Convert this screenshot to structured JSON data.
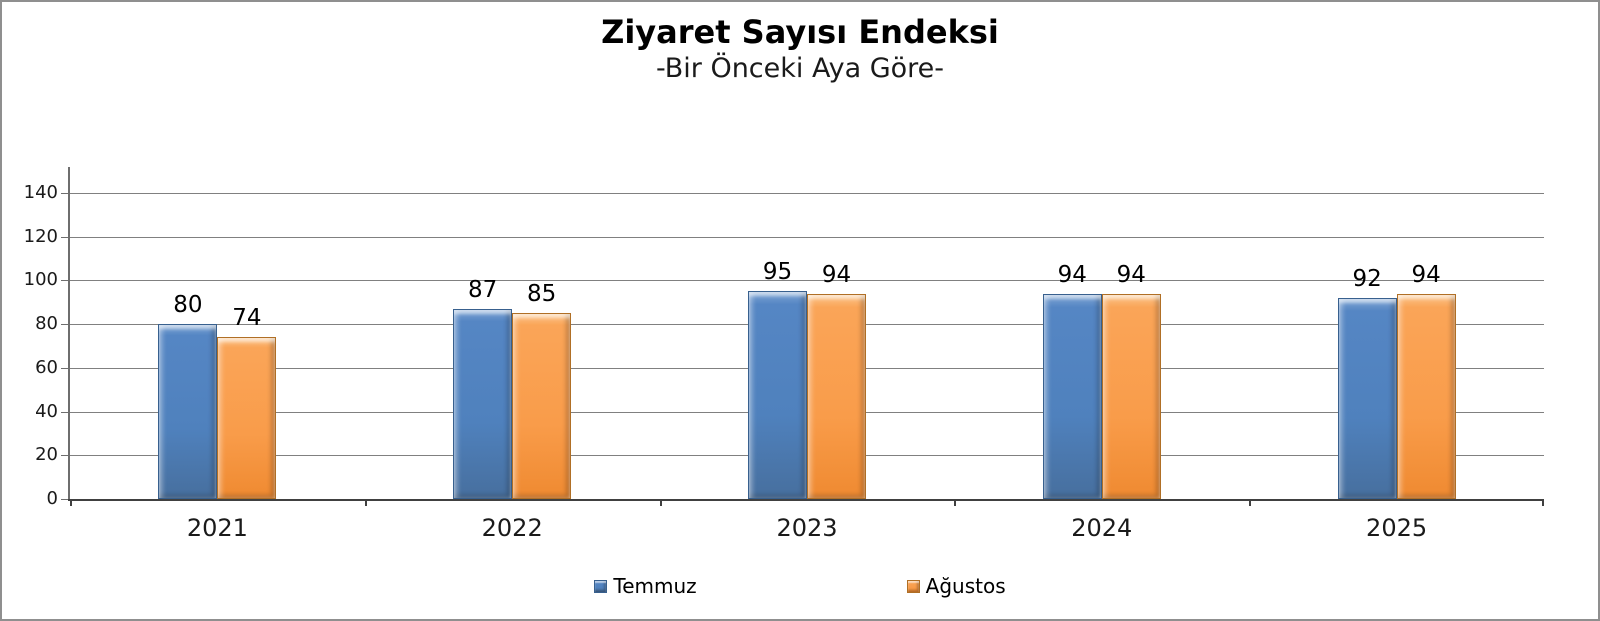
{
  "title": "Ziyaret Sayısı Endeksi",
  "subtitle": "-Bir Önceki Aya Göre-",
  "chart_data": {
    "type": "bar",
    "title": "Ziyaret Sayısı Endeksi",
    "subtitle": "-Bir Önceki Aya Göre-",
    "categories": [
      "2021",
      "2022",
      "2023",
      "2024",
      "2025"
    ],
    "series": [
      {
        "name": "Temmuz",
        "color": "#4F81BD",
        "values": [
          80,
          87,
          95,
          94,
          92
        ]
      },
      {
        "name": "Ağustos",
        "color": "#F99C4A",
        "values": [
          74,
          85,
          94,
          94,
          94
        ]
      }
    ],
    "xlabel": "",
    "ylabel": "",
    "ylim": [
      0,
      140
    ],
    "yticks": [
      0,
      20,
      40,
      60,
      80,
      100,
      120,
      140
    ],
    "grid": true,
    "data_labels": true,
    "legend_position": "bottom"
  }
}
